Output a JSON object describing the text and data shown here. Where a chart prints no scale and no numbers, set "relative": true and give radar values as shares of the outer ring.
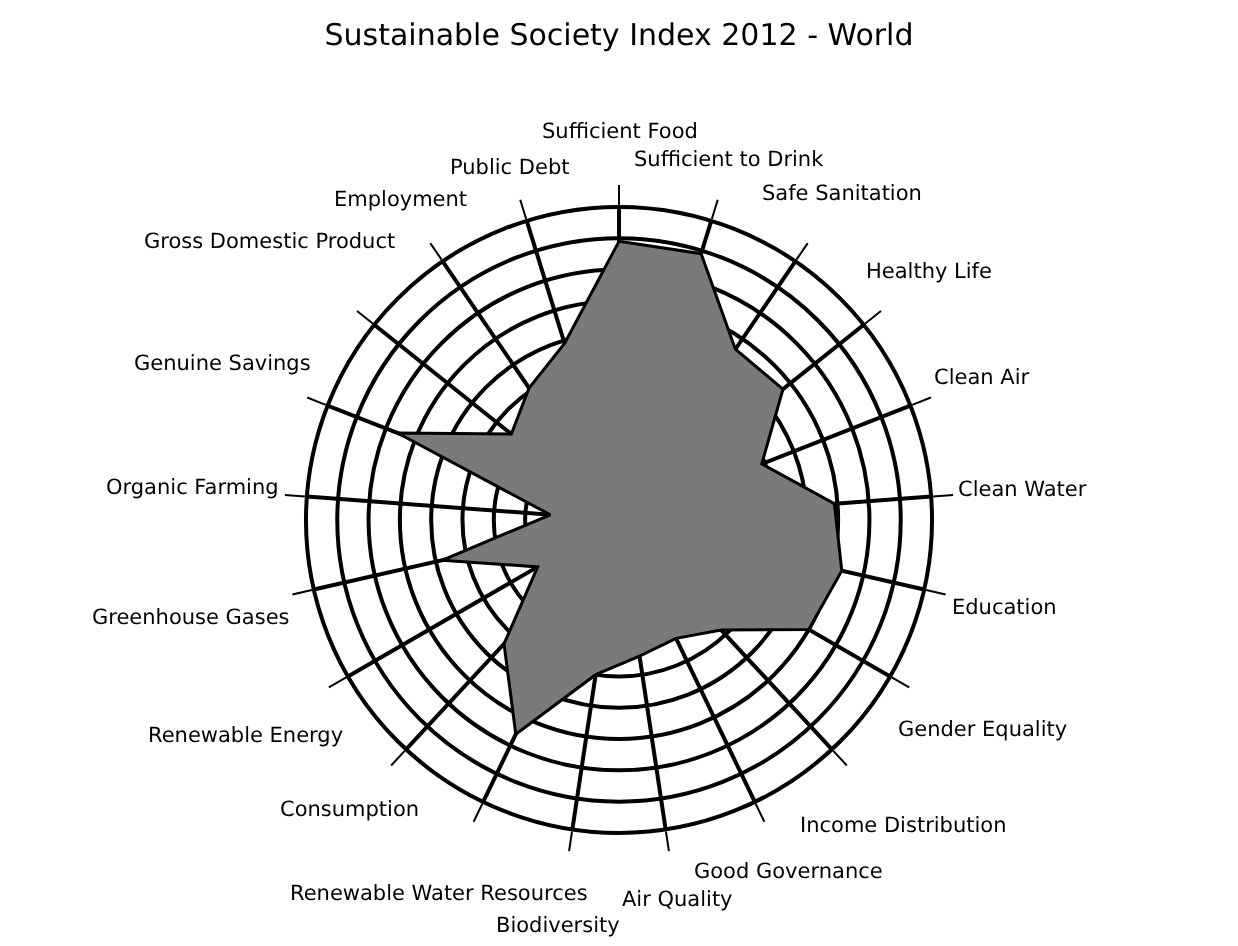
{
  "chart_data": {
    "type": "radar",
    "title": "Sustainable Society Index 2012 - World",
    "relative": true,
    "grid": true,
    "marker": "none",
    "categories": [
      "Sufficient Food",
      "Sufficient to Drink",
      "Safe Sanitation",
      "Healthy Life",
      "Clean Air",
      "Clean Water",
      "Education",
      "Gender Equality",
      "Income Distribution",
      "Good Governance",
      "Air Quality",
      "Biodiversity",
      "Renewable Water Resources",
      "Consumption",
      "Renewable Energy",
      "Greenhouse Gases",
      "Organic Farming",
      "Genuine Savings",
      "Gross Domestic Product",
      "Employment",
      "Public Debt"
    ],
    "series": [
      {
        "color": "#7a7a7a",
        "values": [
          0.89,
          0.89,
          0.66,
          0.67,
          0.49,
          0.69,
          0.73,
          0.7,
          0.48,
          0.42,
          0.44,
          0.5,
          0.76,
          0.54,
          0.3,
          0.58,
          0.22,
          0.76,
          0.44,
          0.51,
          0.59
        ]
      }
    ]
  }
}
